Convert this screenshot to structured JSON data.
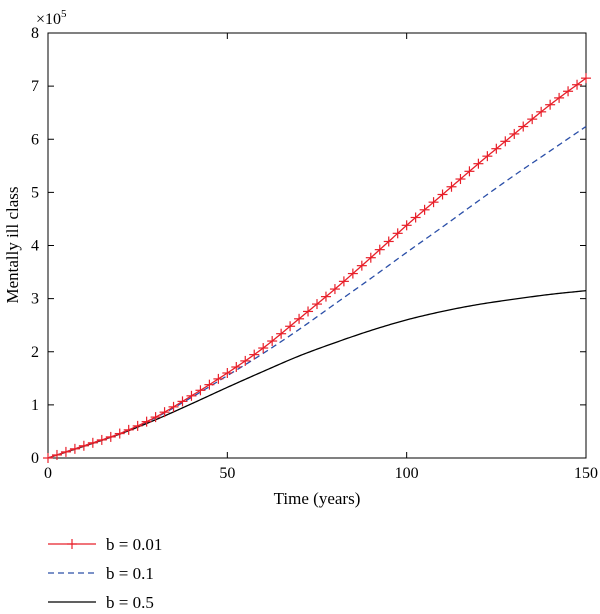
{
  "chart_data": {
    "type": "line",
    "title": "",
    "xlabel": "Time (years)",
    "ylabel": "Mentally ill class",
    "y_multiplier_label": "×10",
    "y_multiplier_exponent": "5",
    "xlim": [
      0,
      150
    ],
    "ylim": [
      0,
      8
    ],
    "x_ticks": [
      0,
      50,
      100,
      150
    ],
    "y_ticks": [
      0,
      1,
      2,
      3,
      4,
      5,
      6,
      7,
      8
    ],
    "x_tick_labels": [
      "0",
      "50",
      "100",
      "150"
    ],
    "y_tick_labels": [
      "0",
      "1",
      "2",
      "3",
      "4",
      "5",
      "6",
      "7",
      "8"
    ],
    "grid": false,
    "legend_position": "below-plot-left",
    "x": [
      0,
      10,
      20,
      30,
      40,
      50,
      60,
      70,
      80,
      90,
      100,
      110,
      120,
      130,
      140,
      150
    ],
    "series": [
      {
        "name": "b = 0.01",
        "color": "#e8202a",
        "style": "solid",
        "marker": "+",
        "values": [
          0.0,
          0.23,
          0.46,
          0.77,
          1.17,
          1.6,
          2.07,
          2.62,
          3.18,
          3.77,
          4.38,
          4.96,
          5.54,
          6.1,
          6.65,
          7.15
        ]
      },
      {
        "name": "b = 0.1",
        "color": "#2b4fa8",
        "style": "dashed",
        "marker": "none",
        "values": [
          0.0,
          0.23,
          0.46,
          0.76,
          1.14,
          1.55,
          1.97,
          2.42,
          2.9,
          3.38,
          3.87,
          4.35,
          4.84,
          5.32,
          5.78,
          6.24
        ]
      },
      {
        "name": "b = 0.5",
        "color": "#000000",
        "style": "solid",
        "marker": "none",
        "values": [
          0.0,
          0.22,
          0.45,
          0.72,
          1.02,
          1.33,
          1.63,
          1.92,
          2.17,
          2.4,
          2.6,
          2.76,
          2.89,
          2.99,
          3.08,
          3.15
        ]
      }
    ]
  }
}
